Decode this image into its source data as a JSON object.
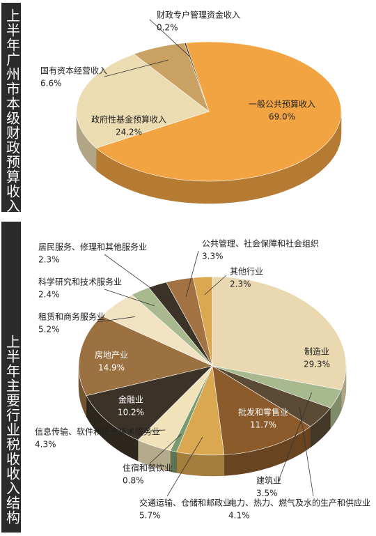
{
  "side_titles": [
    "上半年广州市本级财政预算收入",
    "上半年主要行业税收收入结构"
  ],
  "chart_data": [
    {
      "type": "pie",
      "categories": [
        "一般公共预算收入",
        "政府性基金预算收入",
        "国有资本经营收入",
        "财政专户管理资金收入"
      ],
      "values": [
        69.0,
        24.2,
        6.6,
        0.2
      ],
      "value_labels": [
        "69.0%",
        "24.2%",
        "6.6%",
        "0.2%"
      ],
      "colors": [
        "#f2a443",
        "#ecdcb2",
        "#c9a162",
        "#4a3b2b"
      ]
    },
    {
      "type": "pie",
      "categories": [
        "制造业",
        "建筑业",
        "电力、热力、燃气及水的生产和供应业",
        "批发和零售业",
        "交通运输、仓储和邮政业",
        "住宿和餐饮业",
        "信息传输、软件和信息技术服务业",
        "金融业",
        "房地产业",
        "租赁和商务服务业",
        "科学研究和技术服务业",
        "居民服务、修理和其他服务业",
        "公共管理、社会保障和社会组织",
        "其他行业"
      ],
      "values": [
        29.3,
        3.5,
        4.1,
        11.7,
        5.7,
        0.8,
        4.3,
        10.2,
        14.9,
        5.2,
        2.4,
        2.3,
        3.3,
        2.3
      ],
      "value_labels": [
        "29.3%",
        "3.5%",
        "4.1%",
        "11.7%",
        "5.7%",
        "0.8%",
        "4.3%",
        "10.2%",
        "14.9%",
        "5.2%",
        "2.4%",
        "2.3%",
        "3.3%",
        "2.3%"
      ],
      "colors": [
        "#ead9b0",
        "#a9b98f",
        "#5b4a34",
        "#8c5b2b",
        "#d9a851",
        "#7a9a70",
        "#f1e2ba",
        "#3b3327",
        "#9b7142",
        "#f1e3c2",
        "#a9b98f",
        "#3b3327",
        "#a27242",
        "#d9a851"
      ]
    }
  ]
}
